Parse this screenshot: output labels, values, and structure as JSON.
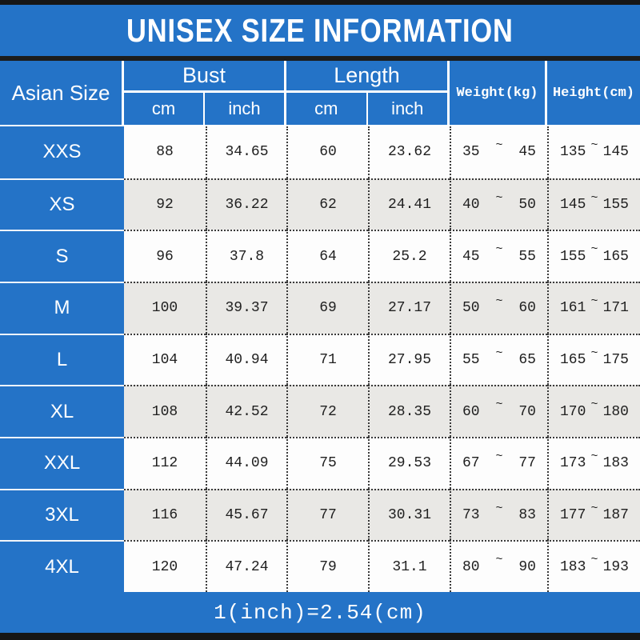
{
  "title": "UNISEX SIZE INFORMATION",
  "footer_note": "1(inch)=2.54(cm)",
  "colors": {
    "accent_blue": "#2473c7",
    "top_bottom_bar": "#161616",
    "row_alternate": "#e9e8e5",
    "row_base": "#fdfdfd"
  },
  "table": {
    "corner_header": "Asian Size",
    "groups": [
      {
        "label": "Bust",
        "sub": [
          "cm",
          "inch"
        ]
      },
      {
        "label": "Length",
        "sub": [
          "cm",
          "inch"
        ]
      }
    ],
    "single_headers": [
      "Weight(kg)",
      "Height(cm)"
    ],
    "range_separator": "~",
    "rows": [
      {
        "size": "XXS",
        "bust_cm": "88",
        "bust_inch": "34.65",
        "len_cm": "60",
        "len_inch": "23.62",
        "weight_min": "35",
        "weight_max": "45",
        "height_min": "135",
        "height_max": "145"
      },
      {
        "size": "XS",
        "bust_cm": "92",
        "bust_inch": "36.22",
        "len_cm": "62",
        "len_inch": "24.41",
        "weight_min": "40",
        "weight_max": "50",
        "height_min": "145",
        "height_max": "155"
      },
      {
        "size": "S",
        "bust_cm": "96",
        "bust_inch": "37.8",
        "len_cm": "64",
        "len_inch": "25.2",
        "weight_min": "45",
        "weight_max": "55",
        "height_min": "155",
        "height_max": "165"
      },
      {
        "size": "M",
        "bust_cm": "100",
        "bust_inch": "39.37",
        "len_cm": "69",
        "len_inch": "27.17",
        "weight_min": "50",
        "weight_max": "60",
        "height_min": "161",
        "height_max": "171"
      },
      {
        "size": "L",
        "bust_cm": "104",
        "bust_inch": "40.94",
        "len_cm": "71",
        "len_inch": "27.95",
        "weight_min": "55",
        "weight_max": "65",
        "height_min": "165",
        "height_max": "175"
      },
      {
        "size": "XL",
        "bust_cm": "108",
        "bust_inch": "42.52",
        "len_cm": "72",
        "len_inch": "28.35",
        "weight_min": "60",
        "weight_max": "70",
        "height_min": "170",
        "height_max": "180"
      },
      {
        "size": "XXL",
        "bust_cm": "112",
        "bust_inch": "44.09",
        "len_cm": "75",
        "len_inch": "29.53",
        "weight_min": "67",
        "weight_max": "77",
        "height_min": "173",
        "height_max": "183"
      },
      {
        "size": "3XL",
        "bust_cm": "116",
        "bust_inch": "45.67",
        "len_cm": "77",
        "len_inch": "30.31",
        "weight_min": "73",
        "weight_max": "83",
        "height_min": "177",
        "height_max": "187"
      },
      {
        "size": "4XL",
        "bust_cm": "120",
        "bust_inch": "47.24",
        "len_cm": "79",
        "len_inch": "31.1",
        "weight_min": "80",
        "weight_max": "90",
        "height_min": "183",
        "height_max": "193"
      }
    ]
  },
  "chart_data": {
    "type": "table",
    "title": "UNISEX SIZE INFORMATION",
    "columns": [
      "Asian Size",
      "Bust cm",
      "Bust inch",
      "Length cm",
      "Length inch",
      "Weight(kg)",
      "Height(cm)"
    ],
    "rows": [
      [
        "XXS",
        88,
        34.65,
        60,
        23.62,
        "35~45",
        "135~145"
      ],
      [
        "XS",
        92,
        36.22,
        62,
        24.41,
        "40~50",
        "145~155"
      ],
      [
        "S",
        96,
        37.8,
        64,
        25.2,
        "45~55",
        "155~165"
      ],
      [
        "M",
        100,
        39.37,
        69,
        27.17,
        "50~60",
        "161~171"
      ],
      [
        "L",
        104,
        40.94,
        71,
        27.95,
        "55~65",
        "165~175"
      ],
      [
        "XL",
        108,
        42.52,
        72,
        28.35,
        "60~70",
        "170~180"
      ],
      [
        "XXL",
        112,
        44.09,
        75,
        29.53,
        "67~77",
        "173~183"
      ],
      [
        "3XL",
        116,
        45.67,
        77,
        30.31,
        "73~83",
        "177~187"
      ],
      [
        "4XL",
        120,
        47.24,
        79,
        31.1,
        "80~90",
        "183~193"
      ]
    ],
    "note": "1(inch)=2.54(cm)"
  }
}
